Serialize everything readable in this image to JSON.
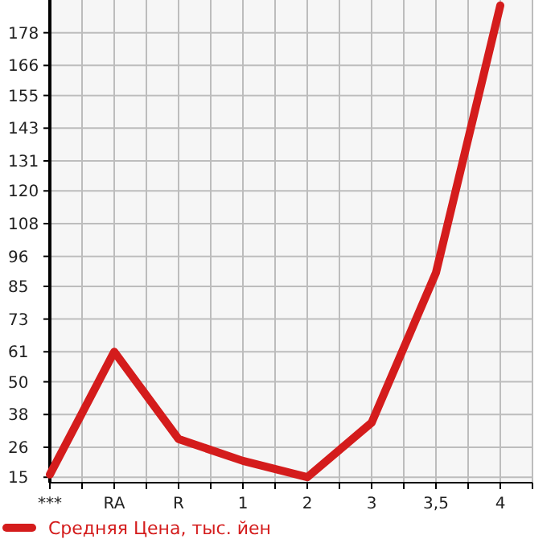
{
  "chart_data": {
    "type": "line",
    "categories": [
      "***",
      "RA",
      "R",
      "1",
      "2",
      "3",
      "3,5",
      "4"
    ],
    "series": [
      {
        "name": "Средняя Цена, тыс. йен",
        "color": "#d41c1c",
        "values": [
          16,
          61,
          29,
          21,
          15,
          35,
          90,
          188
        ]
      }
    ],
    "ylim": [
      13,
      190
    ],
    "yticks": [
      15,
      26,
      38,
      50,
      61,
      73,
      85,
      96,
      108,
      120,
      131,
      143,
      155,
      166,
      178
    ],
    "grid": true,
    "legend": "bottom left",
    "line_style": "solid"
  }
}
